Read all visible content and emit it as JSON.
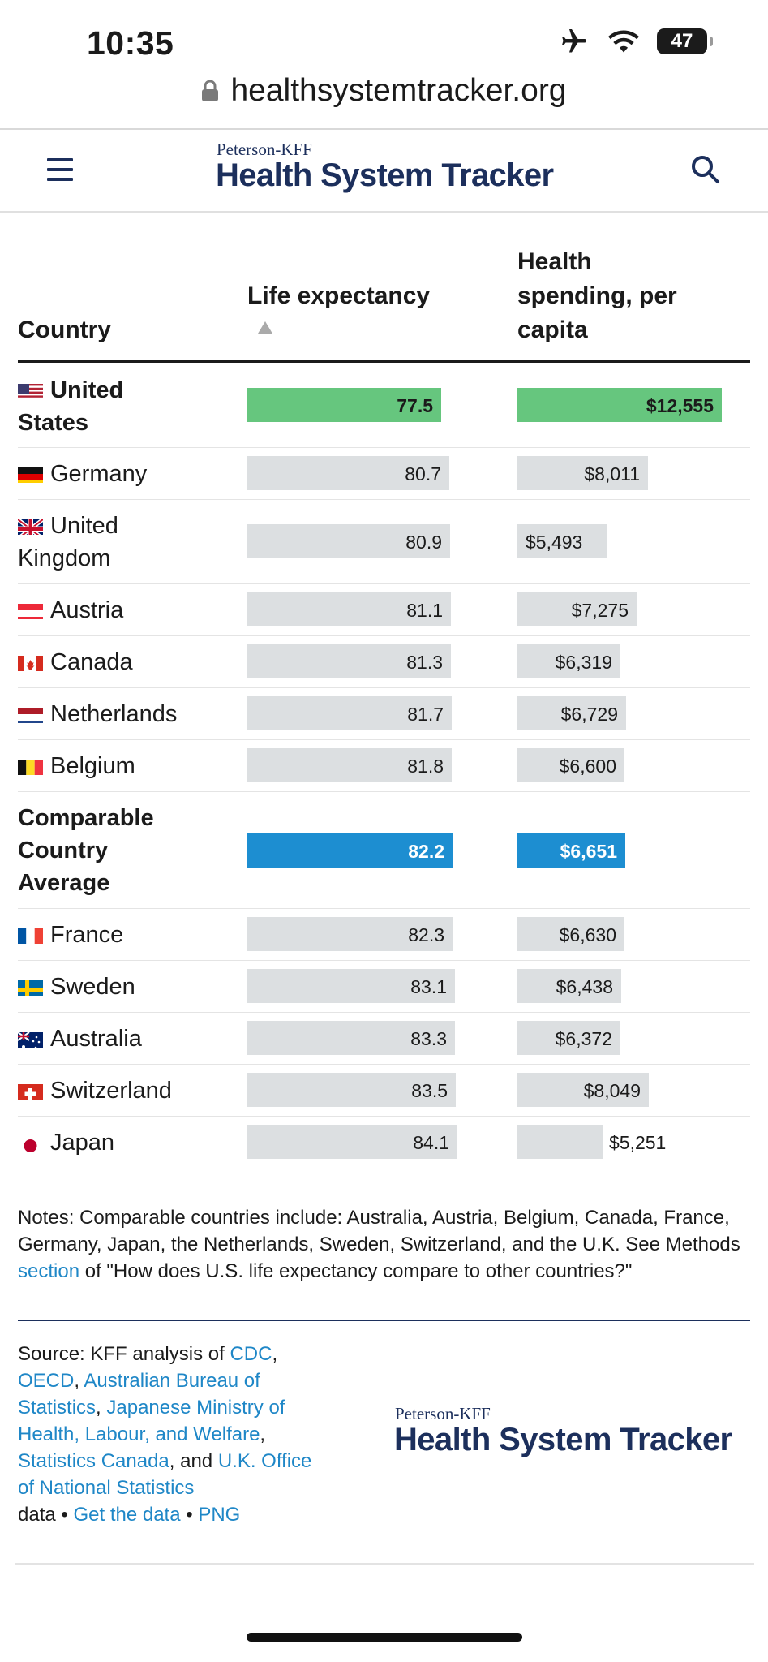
{
  "status_bar": {
    "time": "10:35",
    "battery": "47"
  },
  "browser": {
    "url": "healthsystemtracker.org"
  },
  "header": {
    "brand_small": "Peterson-KFF",
    "brand_big": "Health System Tracker"
  },
  "table": {
    "headers": {
      "country": "Country",
      "life_expectancy": "Life expectancy",
      "spending_line1": "Health",
      "spending_line2": "spending, per",
      "spending_line3": "capita"
    },
    "rows": [
      {
        "country_line1": "United",
        "country_line2": "States",
        "life": "77.5",
        "spending": "$12,555",
        "flag": "us-flag-icon",
        "highlight": "us"
      },
      {
        "country_line1": "Germany",
        "country_line2": "",
        "life": "80.7",
        "spending": "$8,011",
        "flag": "germany-flag-icon"
      },
      {
        "country_line1": "United",
        "country_line2": "Kingdom",
        "life": "80.9",
        "spending": "$5,493",
        "flag": "uk-flag-icon"
      },
      {
        "country_line1": "Austria",
        "country_line2": "",
        "life": "81.1",
        "spending": "$7,275",
        "flag": "austria-flag-icon"
      },
      {
        "country_line1": "Canada",
        "country_line2": "",
        "life": "81.3",
        "spending": "$6,319",
        "flag": "canada-flag-icon"
      },
      {
        "country_line1": "Netherlands",
        "country_line2": "",
        "life": "81.7",
        "spending": "$6,729",
        "flag": "netherlands-flag-icon"
      },
      {
        "country_line1": "Belgium",
        "country_line2": "",
        "life": "81.8",
        "spending": "$6,600",
        "flag": "belgium-flag-icon"
      },
      {
        "country_line1": "Comparable",
        "country_line2": "Country",
        "country_line3": "Average",
        "life": "82.2",
        "spending": "$6,651",
        "highlight": "avg"
      },
      {
        "country_line1": "France",
        "country_line2": "",
        "life": "82.3",
        "spending": "$6,630",
        "flag": "france-flag-icon"
      },
      {
        "country_line1": "Sweden",
        "country_line2": "",
        "life": "83.1",
        "spending": "$6,438",
        "flag": "sweden-flag-icon"
      },
      {
        "country_line1": "Australia",
        "country_line2": "",
        "life": "83.3",
        "spending": "$6,372",
        "flag": "australia-flag-icon"
      },
      {
        "country_line1": "Switzerland",
        "country_line2": "",
        "life": "83.5",
        "spending": "$8,049",
        "flag": "switzerland-flag-icon"
      },
      {
        "country_line1": "Japan",
        "country_line2": "",
        "life": "84.1",
        "spending": "$5,251",
        "flag": "japan-flag-icon"
      }
    ]
  },
  "notes": {
    "text1": "Notes: Comparable countries include: Australia, Austria, Belgium, Canada, France, Germany, Japan, the Netherlands, Sweden, Switzerland, and the U.K. See Methods ",
    "link": "section",
    "text2": " of \"How does U.S. life expectancy compare to other countries?\""
  },
  "source": {
    "prefix": "Source: KFF analysis of ",
    "cdc": "CDC",
    "oecd": "OECD",
    "abs": "Australian Bureau of Statistics",
    "japan": "Japanese Ministry of Health, Labour, and Welfare",
    "statcan": "Statistics Canada",
    "and": ", and ",
    "ons": "U.K. Office of National Statistics",
    "data": "data",
    "bullet": " • ",
    "get_data": "Get the data",
    "png": "PNG"
  },
  "footer": {
    "brand_small": "Peterson-KFF",
    "brand_big": "Health System Tracker"
  },
  "colors": {
    "us_bar": "#66c67e",
    "avg_bar": "#1d8ed1",
    "default_bar": "#dcdfe1",
    "brand": "#1c2f5c",
    "link": "#1f87c7"
  }
}
